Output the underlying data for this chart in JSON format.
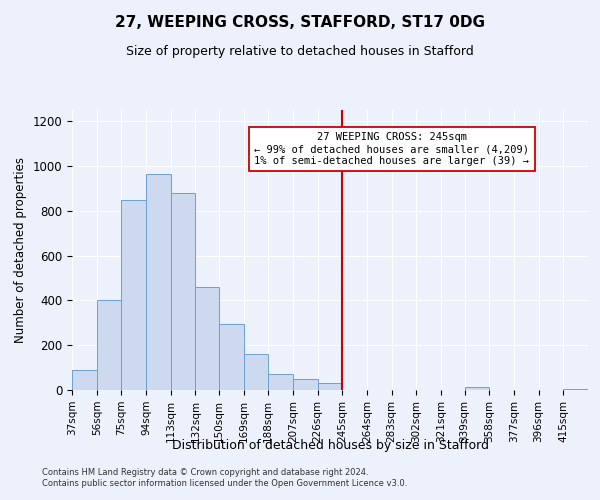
{
  "title": "27, WEEPING CROSS, STAFFORD, ST17 0DG",
  "subtitle": "Size of property relative to detached houses in Stafford",
  "xlabel": "Distribution of detached houses by size in Stafford",
  "ylabel": "Number of detached properties",
  "bar_labels": [
    "37sqm",
    "56sqm",
    "75sqm",
    "94sqm",
    "113sqm",
    "132sqm",
    "150sqm",
    "169sqm",
    "188sqm",
    "207sqm",
    "226sqm",
    "245sqm",
    "264sqm",
    "283sqm",
    "302sqm",
    "321sqm",
    "339sqm",
    "358sqm",
    "377sqm",
    "396sqm",
    "415sqm"
  ],
  "bar_heights": [
    90,
    400,
    850,
    965,
    880,
    460,
    295,
    160,
    70,
    50,
    30,
    0,
    0,
    0,
    0,
    0,
    15,
    0,
    0,
    0,
    5
  ],
  "bar_edges": [
    37,
    56,
    75,
    94,
    113,
    132,
    150,
    169,
    188,
    207,
    226,
    245,
    264,
    283,
    302,
    321,
    339,
    358,
    377,
    396,
    415,
    434
  ],
  "vline_x": 245,
  "annotation_line1": "27 WEEPING CROSS: 245sqm",
  "annotation_line2": "← 99% of detached houses are smaller (4,209)",
  "annotation_line3": "1% of semi-detached houses are larger (39) →",
  "bar_facecolor": "#ccd9ee",
  "bar_edgecolor": "#6b9fd4",
  "vline_color": "#cc0000",
  "ylim": [
    0,
    1250
  ],
  "background_color": "#edf1fb",
  "grid_color": "#ffffff",
  "footer1": "Contains HM Land Registry data © Crown copyright and database right 2024.",
  "footer2": "Contains public sector information licensed under the Open Government Licence v3.0."
}
